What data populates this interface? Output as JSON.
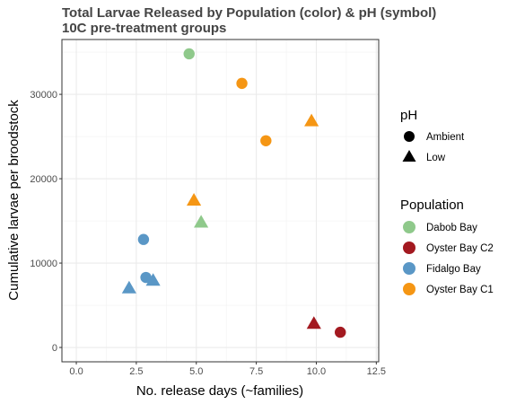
{
  "chart_data": {
    "type": "scatter",
    "title": "Total Larvae Released by Population (color) & pH (symbol)",
    "subtitle": "10C pre-treatment groups",
    "xlabel": "No. release days (~families)",
    "ylabel": "Cumulative larvae per broodstock",
    "xlim": [
      -0.6,
      12.6
    ],
    "ylim": [
      -1700,
      36500
    ],
    "xticks": [
      0,
      2.5,
      5,
      7.5,
      10,
      12.5
    ],
    "xtick_labels": [
      "0.0",
      "2.5",
      "5.0",
      "7.5",
      "10.0",
      "12.5"
    ],
    "yticks": [
      0,
      10000,
      20000,
      30000
    ],
    "ytick_labels": [
      "0",
      "10000",
      "20000",
      "30000"
    ],
    "grid": true,
    "legend_placement": "right",
    "shape_legend": {
      "title": "pH",
      "items": [
        {
          "label": "Ambient",
          "shape": "circle"
        },
        {
          "label": "Low",
          "shape": "triangle"
        }
      ]
    },
    "color_legend": {
      "title": "Population",
      "items": [
        {
          "label": "Dabob Bay",
          "color": "#8fc98b"
        },
        {
          "label": "Oyster Bay C2",
          "color": "#a31920"
        },
        {
          "label": "Fidalgo Bay",
          "color": "#5a97c6"
        },
        {
          "label": "Oyster Bay C1",
          "color": "#f59614"
        }
      ]
    },
    "points": [
      {
        "x": 4.7,
        "y": 34800,
        "population": "Dabob Bay",
        "ph": "Ambient"
      },
      {
        "x": 5.2,
        "y": 14800,
        "population": "Dabob Bay",
        "ph": "Low"
      },
      {
        "x": 6.9,
        "y": 31300,
        "population": "Oyster Bay C1",
        "ph": "Ambient"
      },
      {
        "x": 7.9,
        "y": 24500,
        "population": "Oyster Bay C1",
        "ph": "Ambient"
      },
      {
        "x": 9.8,
        "y": 26800,
        "population": "Oyster Bay C1",
        "ph": "Low"
      },
      {
        "x": 4.9,
        "y": 17400,
        "population": "Oyster Bay C1",
        "ph": "Low"
      },
      {
        "x": 2.8,
        "y": 12800,
        "population": "Fidalgo Bay",
        "ph": "Ambient"
      },
      {
        "x": 2.9,
        "y": 8300,
        "population": "Fidalgo Bay",
        "ph": "Ambient"
      },
      {
        "x": 2.2,
        "y": 7000,
        "population": "Fidalgo Bay",
        "ph": "Low"
      },
      {
        "x": 3.2,
        "y": 7900,
        "population": "Fidalgo Bay",
        "ph": "Low"
      },
      {
        "x": 9.9,
        "y": 2800,
        "population": "Oyster Bay C2",
        "ph": "Low"
      },
      {
        "x": 11.0,
        "y": 1800,
        "population": "Oyster Bay C2",
        "ph": "Ambient"
      }
    ]
  }
}
